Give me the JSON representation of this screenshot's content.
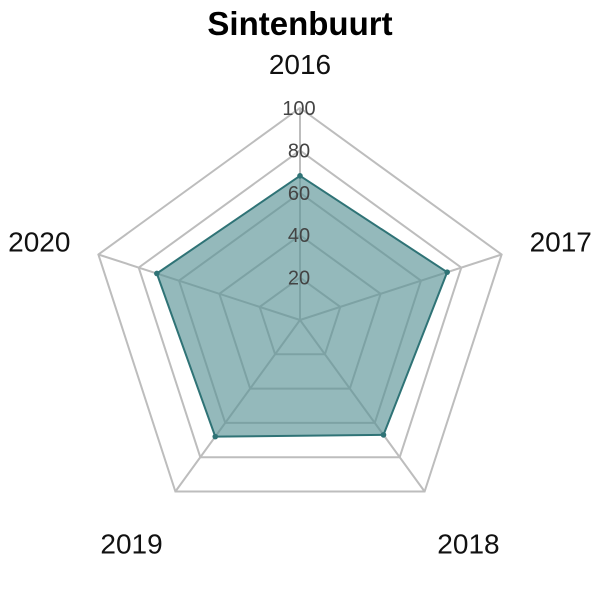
{
  "chart_data": {
    "type": "radar",
    "title": "Sintenbuurt",
    "axes": [
      "2016",
      "2017",
      "2018",
      "2019",
      "2020"
    ],
    "ticks": [
      20,
      40,
      60,
      80,
      100
    ],
    "rlim": [
      0,
      100
    ],
    "series": [
      {
        "values": [
          68,
          73,
          67,
          68,
          71
        ],
        "color": "#2f7376",
        "fill": "#5a9496",
        "fill_opacity": 0.65
      }
    ],
    "grid": true
  }
}
